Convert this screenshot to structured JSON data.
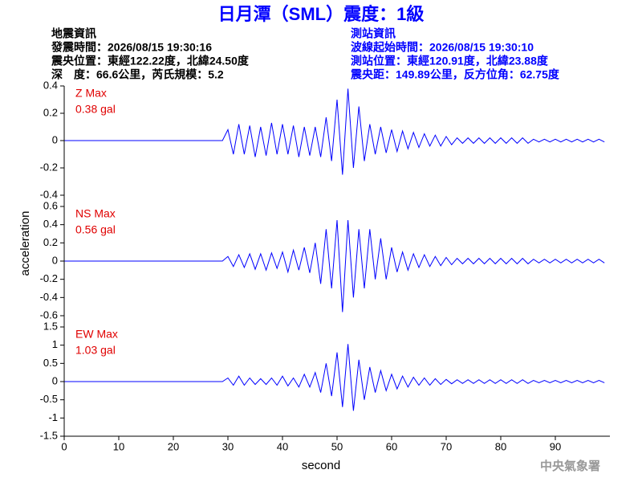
{
  "header": {
    "title": "日月潭（SML）震度：1級",
    "left": [
      "地震資訊",
      "發震時間：2026/08/15 19:30:16",
      "震央位置：東經122.22度，北緯24.50度",
      "深　度：66.6公里，芮氏規模：5.2"
    ],
    "right": [
      "測站資訊",
      "波線起始時間：2026/08/15 19:30:10",
      "測站位置：東經120.91度，北緯23.88度",
      "震央距：149.89公里，反方位角：62.75度"
    ]
  },
  "footer": "中央氣象署",
  "chart_data": {
    "type": "line",
    "xlabel": "second",
    "ylabel": "acceleration",
    "grid": false,
    "xlim": [
      0,
      100
    ],
    "xticks": [
      0,
      10,
      20,
      30,
      40,
      50,
      60,
      70,
      80,
      90
    ],
    "x": [
      0,
      1,
      2,
      3,
      4,
      5,
      6,
      7,
      8,
      9,
      10,
      11,
      12,
      13,
      14,
      15,
      16,
      17,
      18,
      19,
      20,
      21,
      22,
      23,
      24,
      25,
      26,
      27,
      28,
      29,
      30,
      31,
      32,
      33,
      34,
      35,
      36,
      37,
      38,
      39,
      40,
      41,
      42,
      43,
      44,
      45,
      46,
      47,
      48,
      49,
      50,
      51,
      52,
      53,
      54,
      55,
      56,
      57,
      58,
      59,
      60,
      61,
      62,
      63,
      64,
      65,
      66,
      67,
      68,
      69,
      70,
      71,
      72,
      73,
      74,
      75,
      76,
      77,
      78,
      79,
      80,
      81,
      82,
      83,
      84,
      85,
      86,
      87,
      88,
      89,
      90,
      91,
      92,
      93,
      94,
      95,
      96,
      97,
      98,
      99
    ],
    "series": [
      {
        "name": "Z Max",
        "peak": "0.38 gal",
        "color": "#0000ff",
        "ylim": [
          -0.4,
          0.4
        ],
        "yticks": [
          -0.4,
          -0.2,
          0,
          0.2,
          0.4
        ],
        "values": [
          0,
          0,
          0,
          0,
          0,
          0,
          0,
          0,
          0,
          0,
          0,
          0,
          0,
          0,
          0,
          0,
          0,
          0,
          0,
          0,
          0,
          0,
          0,
          0,
          0,
          0,
          0,
          0,
          0,
          0,
          0.08,
          -0.1,
          0.12,
          -0.1,
          0.11,
          -0.12,
          0.1,
          -0.11,
          0.13,
          -0.1,
          0.12,
          -0.1,
          0.11,
          -0.12,
          0.1,
          -0.11,
          0.1,
          -0.12,
          0.17,
          -0.15,
          0.3,
          -0.25,
          0.38,
          -0.2,
          0.25,
          -0.15,
          0.12,
          -0.1,
          0.1,
          -0.09,
          0.08,
          -0.08,
          0.07,
          -0.06,
          0.06,
          -0.05,
          0.05,
          -0.04,
          0.04,
          -0.04,
          0.03,
          -0.03,
          0.02,
          -0.02,
          0.02,
          -0.02,
          0.02,
          -0.02,
          0.02,
          -0.02,
          0.02,
          -0.02,
          0.02,
          -0.02,
          0.02,
          -0.02,
          0.01,
          -0.01,
          0.01,
          -0.01,
          0.01,
          -0.01,
          0.01,
          -0.01,
          0.01,
          -0.01,
          0.01,
          -0.01,
          0.01,
          -0.01
        ]
      },
      {
        "name": "NS Max",
        "peak": "0.56 gal",
        "color": "#0000ff",
        "ylim": [
          -0.6,
          0.6
        ],
        "yticks": [
          -0.6,
          -0.4,
          -0.2,
          0,
          0.2,
          0.4,
          0.6
        ],
        "values": [
          0,
          0,
          0,
          0,
          0,
          0,
          0,
          0,
          0,
          0,
          0,
          0,
          0,
          0,
          0,
          0,
          0,
          0,
          0,
          0,
          0,
          0,
          0,
          0,
          0,
          0,
          0,
          0,
          0,
          0,
          0.05,
          -0.06,
          0.07,
          -0.07,
          0.08,
          -0.09,
          0.08,
          -0.1,
          0.09,
          -0.08,
          0.1,
          -0.12,
          0.12,
          -0.1,
          0.15,
          -0.13,
          0.2,
          -0.25,
          0.35,
          -0.3,
          0.45,
          -0.56,
          0.45,
          -0.4,
          0.35,
          -0.3,
          0.35,
          -0.2,
          0.25,
          -0.2,
          0.15,
          -0.12,
          0.1,
          -0.1,
          0.08,
          -0.07,
          0.07,
          -0.06,
          0.05,
          -0.05,
          0.04,
          -0.04,
          0.03,
          -0.03,
          0.03,
          -0.03,
          0.03,
          -0.03,
          0.03,
          -0.03,
          0.03,
          -0.03,
          0.03,
          -0.03,
          0.03,
          -0.03,
          0.02,
          -0.02,
          0.02,
          -0.02,
          0.02,
          -0.02,
          0.02,
          -0.02,
          0.02,
          -0.02,
          0.02,
          -0.02,
          0.02,
          -0.02
        ]
      },
      {
        "name": "EW Max",
        "peak": "1.03 gal",
        "color": "#0000ff",
        "ylim": [
          -1.5,
          1.5
        ],
        "yticks": [
          -1.5,
          -1,
          -0.5,
          0,
          0.5,
          1,
          1.5
        ],
        "values": [
          0,
          0,
          0,
          0,
          0,
          0,
          0,
          0,
          0,
          0,
          0,
          0,
          0,
          0,
          0,
          0,
          0,
          0,
          0,
          0,
          0,
          0,
          0,
          0,
          0,
          0,
          0,
          0,
          0,
          0,
          0.1,
          -0.1,
          0.15,
          -0.1,
          0.1,
          -0.08,
          0.08,
          -0.08,
          0.1,
          -0.1,
          0.15,
          -0.12,
          0.1,
          -0.15,
          0.2,
          -0.15,
          0.25,
          -0.3,
          0.5,
          -0.4,
          0.8,
          -0.7,
          1.03,
          -0.8,
          0.6,
          -0.5,
          0.4,
          -0.3,
          0.3,
          -0.25,
          0.2,
          -0.2,
          0.15,
          -0.15,
          0.12,
          -0.1,
          0.1,
          -0.1,
          0.08,
          -0.08,
          0.06,
          -0.06,
          0.05,
          -0.05,
          0.05,
          -0.05,
          0.05,
          -0.05,
          0.05,
          -0.05,
          0.05,
          -0.05,
          0.05,
          -0.05,
          0.05,
          -0.05,
          0.03,
          -0.03,
          0.03,
          -0.03,
          0.03,
          -0.03,
          0.03,
          -0.03,
          0.03,
          -0.03,
          0.03,
          -0.03,
          0.03,
          -0.03
        ]
      }
    ]
  }
}
